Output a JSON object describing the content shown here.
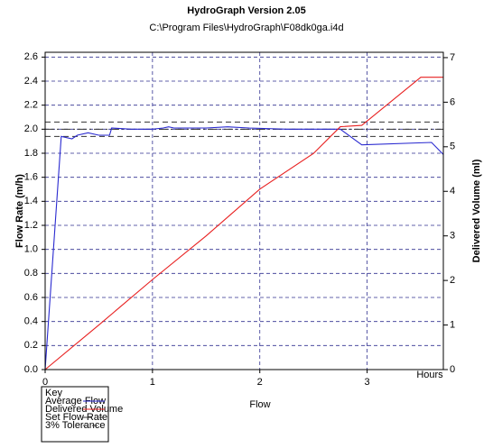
{
  "chart_data": {
    "type": "line",
    "title": "HydroGraph Version 2.05",
    "subtitle": "C:\\Program Files\\HydroGraph\\F08dk0ga.i4d",
    "x_label": "Flow",
    "x_annotation": "Hours",
    "y_label": "Flow Rate (m/h)",
    "y2_label": "Delivered Volume (ml)",
    "xlim": [
      0,
      3.71
    ],
    "xticks": [
      0,
      1,
      2,
      3
    ],
    "ylim": [
      0,
      2.64
    ],
    "yticks": [
      {
        "value": 0,
        "label": "0.0"
      },
      0.2,
      0.4,
      0.6,
      0.8,
      {
        "value": 1,
        "label": "1.0"
      },
      1.2,
      1.4,
      1.6,
      1.8,
      {
        "value": 2,
        "label": "2.0"
      },
      2.2,
      2.4,
      2.6
    ],
    "y2lim": [
      0,
      7.12
    ],
    "y2ticks": [
      0,
      1,
      2,
      3,
      4,
      5,
      6,
      7
    ],
    "grid": true,
    "legend_title": "Key",
    "legend_position": "below-left",
    "series": [
      {
        "name": "Average Flow",
        "color": "#2a2ad0",
        "x": [
          0,
          0.15,
          0.2,
          0.25,
          0.3,
          0.4,
          0.5,
          0.6,
          0.62,
          0.8,
          1.0,
          1.1,
          1.15,
          1.2,
          1.5,
          1.7,
          1.9,
          2.25,
          2.75,
          2.95,
          3.6,
          3.71
        ],
        "values": [
          0,
          1.94,
          1.93,
          1.92,
          1.95,
          1.97,
          1.95,
          1.95,
          2.01,
          2.0,
          2.0,
          2.01,
          2.02,
          2.01,
          2.01,
          2.02,
          2.01,
          2.0,
          2.0,
          1.87,
          1.89,
          1.79
        ]
      },
      {
        "name": "Delivered Volume",
        "color": "#e82020",
        "axis": "y2",
        "x": [
          0,
          0.5,
          1,
          1.5,
          2,
          2.5,
          2.75,
          2.95,
          3.5,
          3.71
        ],
        "values": [
          0,
          1.0,
          2.02,
          3.0,
          4.05,
          4.85,
          5.45,
          5.48,
          6.56,
          6.56
        ]
      }
    ],
    "reference_lines": [
      {
        "name": "Set Flow Rate",
        "color": "#333333",
        "style": "dashdot",
        "values": [
          2.0
        ]
      },
      {
        "name": "3% Tolerance",
        "color": "#333333",
        "style": "dashed",
        "values": [
          1.94,
          2.06
        ]
      }
    ]
  }
}
